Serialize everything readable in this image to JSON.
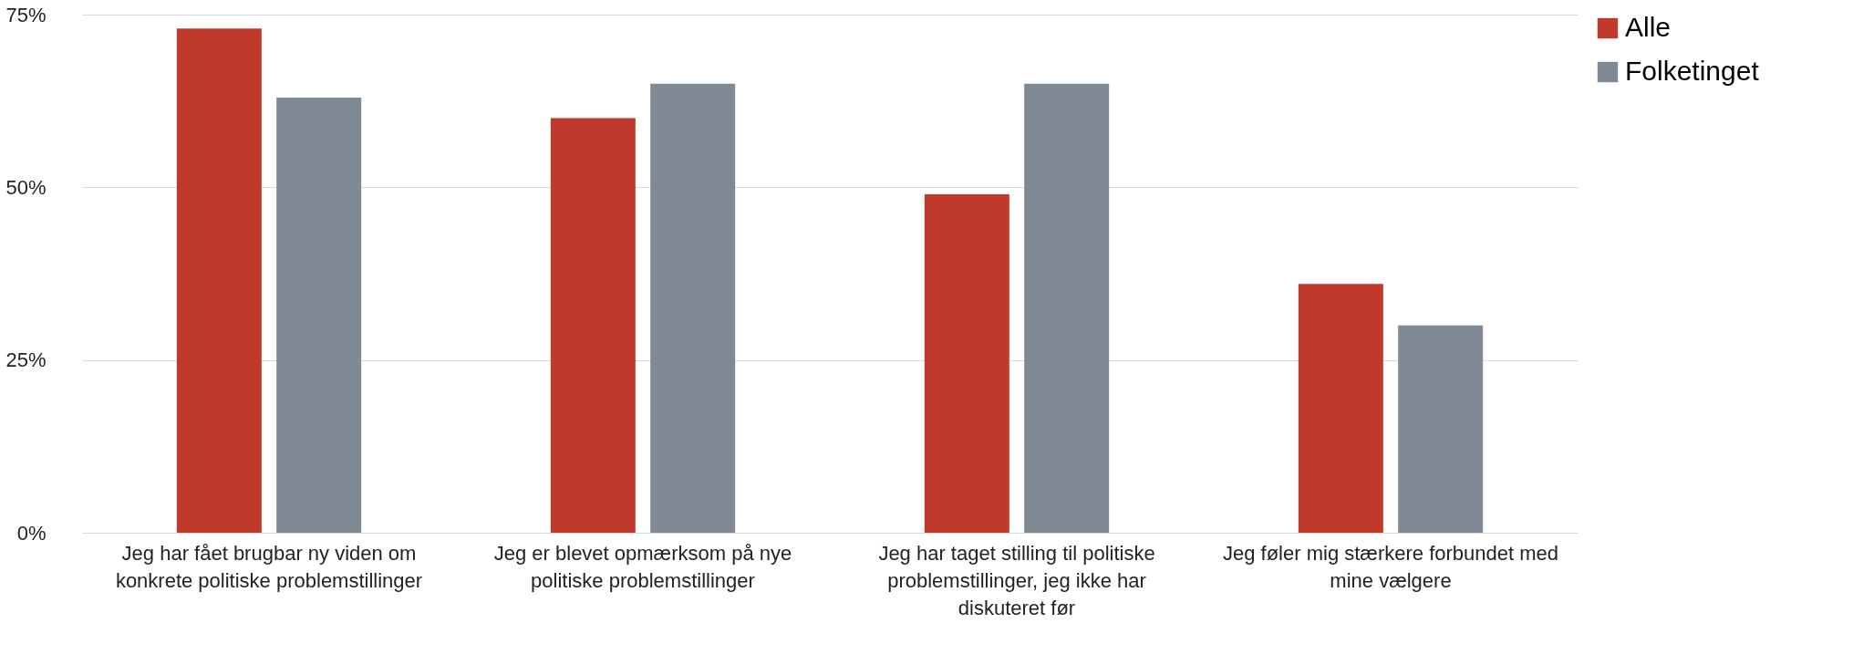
{
  "chart_data": {
    "type": "bar",
    "categories": [
      "Jeg har fået brugbar ny viden om konkrete politiske problemstillinger",
      "Jeg er blevet opmærksom på nye politiske problemstillinger",
      "Jeg har taget stilling til politiske problemstillinger, jeg ikke har diskuteret før",
      "Jeg føler mig stærkere forbundet med mine vælgere"
    ],
    "series": [
      {
        "name": "Alle",
        "color": "#c0392b",
        "values": [
          73,
          60,
          49,
          36
        ]
      },
      {
        "name": "Folketinget",
        "color": "#7f8a95",
        "values": [
          63,
          65,
          65,
          30
        ]
      }
    ],
    "ylim": [
      0,
      75
    ],
    "yticks": [
      {
        "value": 0,
        "label": "0%"
      },
      {
        "value": 25,
        "label": "25%"
      },
      {
        "value": 50,
        "label": "50%"
      },
      {
        "value": 75,
        "label": "75%"
      }
    ],
    "grid": "y",
    "legend": "right"
  }
}
